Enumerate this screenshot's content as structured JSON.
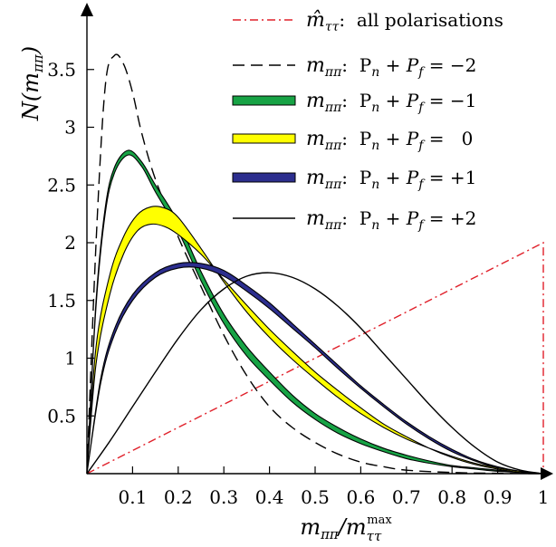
{
  "chart_data": {
    "type": "line",
    "xlabel": "m_ππ / m_ττ^max",
    "ylabel": "N(m_ππ)",
    "xlim": [
      0,
      1
    ],
    "ylim": [
      0,
      3.8
    ],
    "x_ticks": [
      "0.1",
      "0.2",
      "0.3",
      "0.4",
      "0.5",
      "0.6",
      "0.7",
      "0.8",
      "0.9",
      "1"
    ],
    "y_ticks": [
      "0.5",
      "1",
      "1.5",
      "2",
      "2.5",
      "3",
      "3.5"
    ],
    "colors": {
      "red": "#e0202a",
      "green": "#17a345",
      "yellow": "#ffff00",
      "blue": "#2c2e8e",
      "black": "#000000"
    },
    "legend": [
      {
        "symbol": "m̂",
        "sub": "ττ",
        "text": ":  all polarisations",
        "style": "red-dashdot"
      },
      {
        "symbol": "m",
        "sub": "ππ",
        "text": ":  P",
        "rhs": "= −2",
        "style": "black-dashed"
      },
      {
        "symbol": "m",
        "sub": "ππ",
        "text": ":  P",
        "rhs": "= −1",
        "style": "green-band"
      },
      {
        "symbol": "m",
        "sub": "ππ",
        "text": ":  P",
        "rhs": "=   0",
        "style": "yellow-band"
      },
      {
        "symbol": "m",
        "sub": "ππ",
        "text": ":  P",
        "rhs": "= +1",
        "style": "blue-band"
      },
      {
        "symbol": "m",
        "sub": "ππ",
        "text": ":  P",
        "rhs": "= +2",
        "style": "black-solid"
      }
    ],
    "series": [
      {
        "name": "m̂_ττ : all polarisations",
        "style": "red-dashdot",
        "points": [
          [
            0,
            0
          ],
          [
            1,
            2
          ],
          [
            1,
            0
          ]
        ]
      },
      {
        "name": "m_ππ : Pn + Pf = −2",
        "style": "black-dashed",
        "x": [
          0,
          0.02,
          0.04,
          0.06,
          0.08,
          0.1,
          0.12,
          0.15,
          0.2,
          0.25,
          0.3,
          0.35,
          0.4,
          0.45,
          0.5,
          0.55,
          0.6,
          0.65,
          0.7,
          0.8,
          0.9,
          1.0
        ],
        "y": [
          0,
          2.0,
          3.35,
          3.62,
          3.55,
          3.3,
          2.95,
          2.55,
          2.05,
          1.62,
          1.2,
          0.85,
          0.58,
          0.4,
          0.27,
          0.17,
          0.1,
          0.06,
          0.03,
          0.01,
          0.003,
          0
        ]
      },
      {
        "name": "m_ππ : Pn + Pf = −1",
        "style": "green-band",
        "x": [
          0,
          0.02,
          0.04,
          0.06,
          0.09,
          0.12,
          0.15,
          0.2,
          0.25,
          0.3,
          0.35,
          0.4,
          0.45,
          0.5,
          0.55,
          0.6,
          0.65,
          0.7,
          0.75,
          0.8,
          0.85,
          0.9,
          0.95,
          1.0
        ],
        "y_upper": [
          0,
          1.5,
          2.3,
          2.65,
          2.8,
          2.7,
          2.5,
          2.18,
          1.75,
          1.38,
          1.1,
          0.88,
          0.68,
          0.52,
          0.4,
          0.3,
          0.22,
          0.16,
          0.11,
          0.07,
          0.05,
          0.03,
          0.01,
          0
        ],
        "y_lower": [
          0,
          1.45,
          2.25,
          2.6,
          2.76,
          2.66,
          2.44,
          2.1,
          1.67,
          1.3,
          1.02,
          0.81,
          0.62,
          0.47,
          0.35,
          0.26,
          0.19,
          0.13,
          0.09,
          0.06,
          0.04,
          0.02,
          0.01,
          0
        ]
      },
      {
        "name": "m_ππ : Pn + Pf = 0",
        "style": "yellow-band",
        "x": [
          0,
          0.02,
          0.05,
          0.08,
          0.11,
          0.14,
          0.17,
          0.2,
          0.25,
          0.3,
          0.35,
          0.4,
          0.45,
          0.5,
          0.55,
          0.6,
          0.65,
          0.7,
          0.75,
          0.8,
          0.85,
          0.9,
          0.95,
          1.0
        ],
        "y_upper": [
          0,
          1.1,
          1.72,
          2.05,
          2.24,
          2.31,
          2.3,
          2.22,
          1.95,
          1.66,
          1.4,
          1.18,
          0.99,
          0.82,
          0.66,
          0.52,
          0.4,
          0.3,
          0.22,
          0.15,
          0.09,
          0.05,
          0.02,
          0
        ],
        "y_lower": [
          0,
          0.95,
          1.55,
          1.9,
          2.1,
          2.16,
          2.14,
          2.07,
          1.9,
          1.68,
          1.46,
          1.25,
          1.06,
          0.88,
          0.72,
          0.57,
          0.43,
          0.32,
          0.22,
          0.14,
          0.08,
          0.04,
          0.01,
          0
        ]
      },
      {
        "name": "m_ππ : Pn + Pf = +1",
        "style": "blue-band",
        "x": [
          0,
          0.03,
          0.06,
          0.1,
          0.15,
          0.2,
          0.25,
          0.3,
          0.35,
          0.4,
          0.45,
          0.5,
          0.55,
          0.6,
          0.65,
          0.7,
          0.75,
          0.8,
          0.85,
          0.9,
          0.95,
          1.0
        ],
        "y_upper": [
          0,
          0.82,
          1.25,
          1.55,
          1.74,
          1.82,
          1.82,
          1.76,
          1.63,
          1.48,
          1.3,
          1.12,
          0.94,
          0.76,
          0.6,
          0.45,
          0.32,
          0.21,
          0.12,
          0.06,
          0.02,
          0
        ],
        "y_lower": [
          0,
          0.78,
          1.2,
          1.5,
          1.7,
          1.78,
          1.78,
          1.71,
          1.58,
          1.43,
          1.26,
          1.09,
          0.91,
          0.74,
          0.58,
          0.43,
          0.3,
          0.19,
          0.11,
          0.05,
          0.02,
          0
        ]
      },
      {
        "name": "m_ππ : Pn + Pf = +2",
        "style": "black-solid",
        "x": [
          0,
          0.05,
          0.1,
          0.15,
          0.2,
          0.25,
          0.3,
          0.35,
          0.4,
          0.45,
          0.5,
          0.55,
          0.6,
          0.65,
          0.7,
          0.75,
          0.8,
          0.85,
          0.9,
          0.95,
          1.0
        ],
        "y": [
          0,
          0.28,
          0.58,
          0.88,
          1.17,
          1.42,
          1.6,
          1.71,
          1.74,
          1.7,
          1.6,
          1.45,
          1.26,
          1.04,
          0.82,
          0.6,
          0.4,
          0.23,
          0.1,
          0.03,
          0
        ]
      }
    ]
  }
}
